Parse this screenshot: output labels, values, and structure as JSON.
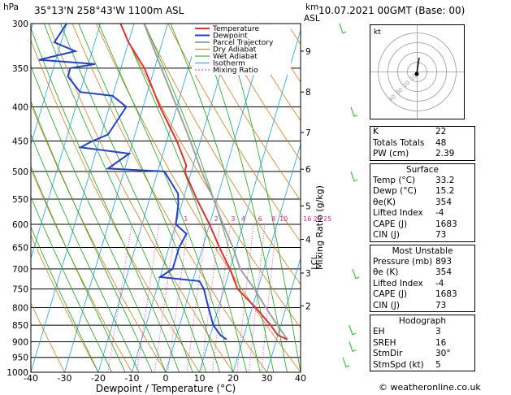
{
  "header": {
    "station": "35°13'N 258°43'W 1100m ASL",
    "datetime": "10.07.2021 00GMT (Base: 00)",
    "hpa_label": "hPa",
    "km_label": "km\nASL"
  },
  "footer": "© weatheronline.co.uk",
  "legend": [
    "Temperature",
    "Dewpoint",
    "Parcel Trajectory",
    "Dry Adiabat",
    "Wet Adiabat",
    "Isotherm",
    "Mixing Ratio"
  ],
  "colors": {
    "temperature": "#e03030",
    "dewpoint": "#2040d0",
    "parcel": "#a0a0a0",
    "dry_adiabat": "#d08020",
    "wet_adiabat": "#20a020",
    "isotherm": "#20a0e0",
    "mixing_ratio": "#e020a0"
  },
  "chart_data": {
    "type": "skew-t",
    "xlabel": "Dewpoint / Temperature (°C)",
    "ylabel": "hPa",
    "xlim": [
      -40,
      40
    ],
    "pressure_ticks": [
      300,
      350,
      400,
      450,
      500,
      550,
      600,
      650,
      700,
      750,
      800,
      850,
      900,
      950,
      1000
    ],
    "temp_ticks": [
      -40,
      -30,
      -20,
      -10,
      0,
      10,
      20,
      30,
      40
    ],
    "km_ticks": [
      {
        "km": "9",
        "p": 330
      },
      {
        "km": "8",
        "p": 380
      },
      {
        "km": "7",
        "p": 437
      },
      {
        "km": "6",
        "p": 496
      },
      {
        "km": "5",
        "p": 563
      },
      {
        "km": "4",
        "p": 632
      },
      {
        "km": "3",
        "p": 710
      },
      {
        "km": "2",
        "p": 795
      }
    ],
    "lcl_label": "LCL",
    "lcl_p": 690,
    "mixing_ratio_labels": [
      {
        "v": "1",
        "t": -7
      },
      {
        "v": "2",
        "t": 2
      },
      {
        "v": "3",
        "t": 7
      },
      {
        "v": "4",
        "t": 10
      },
      {
        "v": "6",
        "t": 15
      },
      {
        "v": "8",
        "t": 19
      },
      {
        "v": "10",
        "t": 22
      },
      {
        "v": "16",
        "t": 29
      },
      {
        "v": "20",
        "t": 32
      },
      {
        "v": "25",
        "t": 35
      }
    ],
    "mixing_ratio_axis_label": "Mixing Ratio (g/kg)",
    "temperature": [
      [
        893,
        33.2
      ],
      [
        880,
        30
      ],
      [
        850,
        27
      ],
      [
        800,
        21
      ],
      [
        750,
        14
      ],
      [
        700,
        10
      ],
      [
        680,
        8
      ],
      [
        650,
        5
      ],
      [
        600,
        0
      ],
      [
        550,
        -6
      ],
      [
        500,
        -12
      ],
      [
        490,
        -12
      ],
      [
        450,
        -17
      ],
      [
        400,
        -25
      ],
      [
        350,
        -33
      ],
      [
        320,
        -40
      ],
      [
        300,
        -44
      ]
    ],
    "dewpoint": [
      [
        893,
        15.2
      ],
      [
        880,
        13
      ],
      [
        850,
        10
      ],
      [
        800,
        7
      ],
      [
        750,
        4
      ],
      [
        730,
        2
      ],
      [
        720,
        -10
      ],
      [
        700,
        -7
      ],
      [
        650,
        -7
      ],
      [
        620,
        -6
      ],
      [
        600,
        -10
      ],
      [
        560,
        -11
      ],
      [
        540,
        -12
      ],
      [
        500,
        -18
      ],
      [
        495,
        -35
      ],
      [
        470,
        -30
      ],
      [
        460,
        -45
      ],
      [
        450,
        -42
      ],
      [
        440,
        -38
      ],
      [
        400,
        -35
      ],
      [
        385,
        -40
      ],
      [
        380,
        -50
      ],
      [
        360,
        -55
      ],
      [
        350,
        -55
      ],
      [
        345,
        -48
      ],
      [
        340,
        -65
      ],
      [
        330,
        -55
      ],
      [
        320,
        -62
      ],
      [
        300,
        -60
      ]
    ],
    "parcel": [
      [
        893,
        33.2
      ],
      [
        850,
        29
      ],
      [
        800,
        24
      ],
      [
        750,
        19
      ],
      [
        700,
        13
      ],
      [
        650,
        9
      ],
      [
        600,
        4
      ],
      [
        550,
        -1
      ],
      [
        500,
        -7
      ],
      [
        450,
        -13
      ],
      [
        400,
        -20
      ],
      [
        350,
        -28
      ],
      [
        300,
        -37
      ]
    ]
  },
  "hodograph": {
    "label": "kt",
    "ring_labels": [
      "10",
      "20",
      "30",
      "40"
    ]
  },
  "indices": {
    "top": [
      {
        "k": "K",
        "v": "22"
      },
      {
        "k": "Totals Totals",
        "v": "48"
      },
      {
        "k": "PW (cm)",
        "v": "2.39"
      }
    ],
    "surface": {
      "title": "Surface",
      "rows": [
        {
          "k": "Temp (°C)",
          "v": "33.2"
        },
        {
          "k": "Dewp (°C)",
          "v": "15.2"
        },
        {
          "k": "θe(K)",
          "v": "354"
        },
        {
          "k": "Lifted Index",
          "v": "-4"
        },
        {
          "k": "CAPE (J)",
          "v": "1683"
        },
        {
          "k": "CIN (J)",
          "v": "73"
        }
      ]
    },
    "unstable": {
      "title": "Most Unstable",
      "rows": [
        {
          "k": "Pressure (mb)",
          "v": "893"
        },
        {
          "k": "θe (K)",
          "v": "354"
        },
        {
          "k": "Lifted Index",
          "v": "-4"
        },
        {
          "k": "CAPE (J)",
          "v": "1683"
        },
        {
          "k": "CIN (J)",
          "v": "73"
        }
      ]
    },
    "hodograph": {
      "title": "Hodograph",
      "rows": [
        {
          "k": "EH",
          "v": "3"
        },
        {
          "k": "SREH",
          "v": "16"
        },
        {
          "k": "StmDir",
          "v": "30°"
        },
        {
          "k": "StmSpd (kt)",
          "v": "5"
        }
      ]
    }
  }
}
